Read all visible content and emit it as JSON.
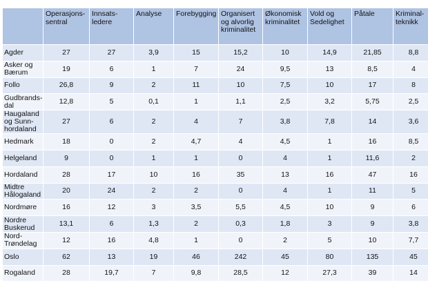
{
  "table": {
    "columns": [
      "Operasjons-sentral",
      "Innsats-ledere",
      "Analyse",
      "Forebygging",
      "Organisert og alvorlig kriminalitet",
      "Økonomisk kriminalitet",
      "Vold og Sedelighet",
      "Påtale",
      "Kriminal-teknikk"
    ],
    "rows": [
      {
        "label": "Agder",
        "values": [
          "27",
          "27",
          "3,9",
          "15",
          "15,2",
          "10",
          "14,9",
          "21,85",
          "8,8"
        ]
      },
      {
        "label": "Asker og Bærum",
        "values": [
          "19",
          "6",
          "1",
          "7",
          "24",
          "9,5",
          "13",
          "8,5",
          "4"
        ]
      },
      {
        "label": "Follo",
        "values": [
          "26,8",
          "9",
          "2",
          "11",
          "10",
          "7,5",
          "10",
          "17",
          "8"
        ]
      },
      {
        "label": "Gudbrands-dal",
        "values": [
          "12,8",
          "5",
          "0,1",
          "1",
          "1,1",
          "2,5",
          "3,2",
          "5,75",
          "2,5"
        ]
      },
      {
        "label": "Haugaland og Sunn-hordaland",
        "values": [
          "27",
          "6",
          "2",
          "4",
          "7",
          "3,8",
          "7,8",
          "14",
          "3,6"
        ]
      },
      {
        "label": "Hedmark",
        "values": [
          "18",
          "0",
          "2",
          "4,7",
          "4",
          "4,5",
          "1",
          "16",
          "8,5"
        ]
      },
      {
        "label": "Helgeland",
        "values": [
          "9",
          "0",
          "1",
          "1",
          "0",
          "4",
          "1",
          "11,6",
          "2"
        ]
      },
      {
        "label": "Hordaland",
        "values": [
          "28",
          "17",
          "10",
          "16",
          "35",
          "13",
          "16",
          "47",
          "16"
        ]
      },
      {
        "label": "Midtre Hålogaland",
        "values": [
          "20",
          "24",
          "2",
          "2",
          "0",
          "4",
          "1",
          "11",
          "5"
        ]
      },
      {
        "label": "Nordmøre",
        "values": [
          "16",
          "12",
          "3",
          "3,5",
          "5,5",
          "4,5",
          "10",
          "9",
          "6"
        ]
      },
      {
        "label": "Nordre Buskerud",
        "values": [
          "13,1",
          "6",
          "1,3",
          "2",
          "0,3",
          "1,8",
          "3",
          "9",
          "3,8"
        ]
      },
      {
        "label": "Nord-Trøndelag",
        "values": [
          "12",
          "16",
          "4,8",
          "1",
          "0",
          "2",
          "5",
          "10",
          "7,7"
        ]
      },
      {
        "label": "Oslo",
        "values": [
          "62",
          "13",
          "19",
          "46",
          "242",
          "45",
          "80",
          "135",
          "45"
        ]
      },
      {
        "label": "Rogaland",
        "values": [
          "28",
          "19,7",
          "7",
          "9,8",
          "28,5",
          "12",
          "27,3",
          "39",
          "14"
        ]
      }
    ]
  }
}
